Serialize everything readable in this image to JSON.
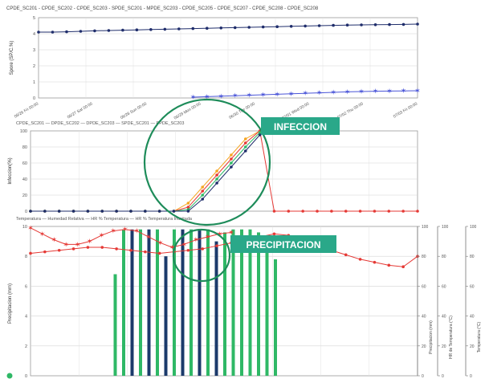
{
  "header_legend": "CPDE_SC201 - CPDE_SC202 - CPDE_SC203 - SPDE_SC201 - MPDE_SC203 - CPDE_SC205 - CPDE_SC207 - CPDE_SC208 - CPDE_SC208",
  "colors": {
    "navy": "#1f2d6b",
    "blue_marker": "#4a55d8",
    "red": "#e53935",
    "green_bar": "#2fb866",
    "dark_bar": "#1b3a6b",
    "callout_green": "#1e8c5a",
    "callout_box": "#2aa889",
    "orange": "#f5a623",
    "grid": "#d4d4d4"
  },
  "annotations": {
    "infeccion": "INFECCION",
    "precipitacion": "PRECIPITACION"
  },
  "chart_data": [
    {
      "type": "line",
      "ylabel": "Spore (SP/C.%)",
      "ylim": [
        0,
        5
      ],
      "yticks": [
        "5",
        "4",
        "3",
        "2",
        "1",
        "0"
      ],
      "x_ticks": [
        "06/26 Fri 00:00",
        "06/27 Sat 00:00",
        "06/28 Sun 00:00",
        "06/29 Mon 00:00",
        "06/30 Tue 00:00",
        "07/01 Wed 00:00",
        "07/02 Thu 00:00",
        "07/03 Fri 00:00"
      ],
      "series": [
        {
          "color": "#1f2d6b",
          "values": [
            4.1,
            4.1,
            4.12,
            4.15,
            4.18,
            4.2,
            4.22,
            4.24,
            4.26,
            4.28,
            4.3,
            4.32,
            4.34,
            4.36,
            4.38,
            4.4,
            4.42,
            4.44,
            4.46,
            4.48,
            4.5,
            4.52,
            4.54,
            4.55,
            4.56,
            4.57,
            4.58,
            4.6
          ]
        },
        {
          "color": "#4a55d8",
          "values": [
            null,
            null,
            null,
            null,
            null,
            null,
            null,
            null,
            null,
            null,
            null,
            0.05,
            0.08,
            0.11,
            0.14,
            0.17,
            0.2,
            0.23,
            0.26,
            0.29,
            0.32,
            0.35,
            0.38,
            0.4,
            0.42,
            0.43,
            0.44,
            0.45
          ]
        }
      ]
    },
    {
      "type": "line",
      "ylabel": "Infeccion(%)",
      "legend": "CPDE_SC201 — DPDE_SC202 — DPDE_SC203 — SPDE_SC201 — PPDE_SC203",
      "ylim": [
        0,
        100
      ],
      "yticks": [
        "100",
        "80",
        "60",
        "40",
        "20",
        "0"
      ],
      "series": [
        {
          "color": "#f5a623",
          "values": [
            0,
            0,
            0,
            0,
            0,
            0,
            0,
            0,
            0,
            0,
            0,
            10,
            30,
            50,
            70,
            90,
            100
          ]
        },
        {
          "color": "#e53935",
          "values": [
            0,
            0,
            0,
            0,
            0,
            0,
            0,
            0,
            0,
            0,
            0,
            5,
            25,
            45,
            65,
            85,
            100,
            0,
            0,
            0,
            0,
            0,
            0,
            0,
            0,
            0,
            0,
            0
          ]
        },
        {
          "color": "#2fb866",
          "values": [
            0,
            0,
            0,
            0,
            0,
            0,
            0,
            0,
            0,
            0,
            0,
            2,
            20,
            40,
            60,
            80,
            98
          ]
        },
        {
          "color": "#1f2d6b",
          "values": [
            0,
            0,
            0,
            0,
            0,
            0,
            0,
            0,
            0,
            0,
            0,
            0,
            15,
            35,
            55,
            75,
            95
          ]
        }
      ]
    },
    {
      "type": "bar",
      "ylabel": "Precipitacion (mm)",
      "legend": "Temperatura — Humedad Relativa — HR % Temperatura — HR % Temperatura Inusitada",
      "ylim": [
        0,
        10
      ],
      "yticks": [
        "10",
        "8",
        "6",
        "4",
        "2",
        "0"
      ],
      "right_axis_labels": [
        "Precipitacion (mm)",
        "HR de Temperatura (°C)",
        "Temperatura (°C)"
      ],
      "right_ticks": [
        "100",
        "80",
        "60",
        "40",
        "20",
        "0"
      ],
      "bars": [
        {
          "color": "#2fb866",
          "value": 0
        },
        {
          "color": "#2fb866",
          "value": 0
        },
        {
          "color": "#2fb866",
          "value": 0
        },
        {
          "color": "#2fb866",
          "value": 6.8
        },
        {
          "color": "#2fb866",
          "value": 9.8
        },
        {
          "color": "#1b3a6b",
          "value": 9.8
        },
        {
          "color": "#2fb866",
          "value": 9.8
        },
        {
          "color": "#1b3a6b",
          "value": 9.8
        },
        {
          "color": "#2fb866",
          "value": 9.8
        },
        {
          "color": "#1b3a6b",
          "value": 8.0
        },
        {
          "color": "#2fb866",
          "value": 9.8
        },
        {
          "color": "#1b3a6b",
          "value": 9.8
        },
        {
          "color": "#2fb866",
          "value": 9.8
        },
        {
          "color": "#1b3a6b",
          "value": 9.8
        },
        {
          "color": "#2fb866",
          "value": 9.8
        },
        {
          "color": "#1b3a6b",
          "value": 9.0
        },
        {
          "color": "#2fb866",
          "value": 9.6
        },
        {
          "color": "#2fb866",
          "value": 9.8
        },
        {
          "color": "#2fb866",
          "value": 9.8
        },
        {
          "color": "#2fb866",
          "value": 9.8
        },
        {
          "color": "#2fb866",
          "value": 9.6
        },
        {
          "color": "#2fb866",
          "value": 9.4
        },
        {
          "color": "#2fb866",
          "value": 7.8
        }
      ],
      "lines": [
        {
          "color": "#e53935",
          "values": [
            9.9,
            9.5,
            9.1,
            8.8,
            8.8,
            9.0,
            9.4,
            9.7,
            9.8,
            9.7,
            9.3,
            8.9,
            8.6,
            8.8,
            9.1,
            9.3,
            9.5,
            9.6
          ]
        },
        {
          "color": "#e53935",
          "values": [
            8.2,
            8.3,
            8.4,
            8.5,
            8.6,
            8.6,
            8.5,
            8.4,
            8.3,
            8.2,
            8.3,
            8.4,
            8.5,
            8.7,
            8.9,
            9.1,
            9.3,
            9.5,
            9.4,
            9.0,
            8.7,
            8.4,
            8.1,
            7.8,
            7.6,
            7.4,
            7.3,
            8.0
          ]
        }
      ]
    }
  ]
}
